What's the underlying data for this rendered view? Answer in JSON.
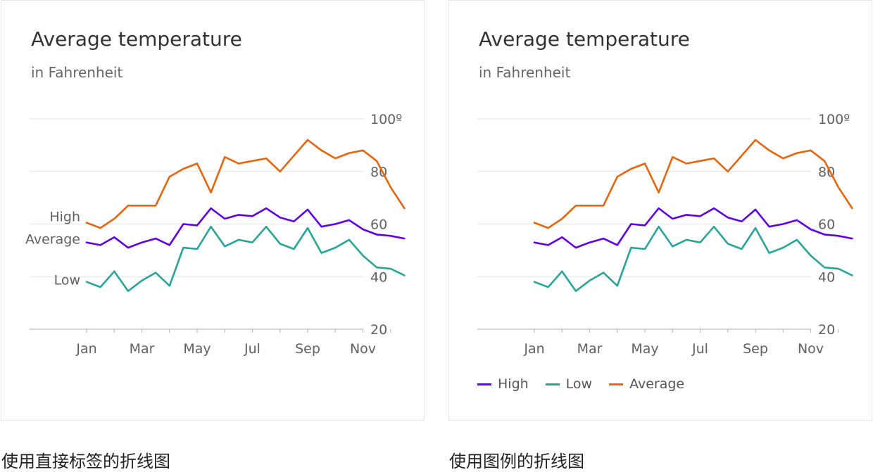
{
  "chart_data": [
    {
      "type": "line",
      "title": "Average temperature",
      "subtitle": "in Fahrenheit",
      "x_ticks": [
        "Jan",
        "Mar",
        "May",
        "Jul",
        "Sep",
        "Nov"
      ],
      "y_ticks": [
        "20",
        "40",
        "60",
        "80",
        "100º"
      ],
      "ylim": [
        20,
        100
      ],
      "grid": true,
      "label_mode": "direct labels at left",
      "series": [
        {
          "name": "High",
          "color": "#6200ea",
          "x": [
            1,
            1.5,
            2,
            2.5,
            3,
            3.5,
            4,
            4.5,
            5,
            5.5,
            6,
            6.5,
            7,
            7.5,
            8,
            8.5,
            9,
            9.5,
            10,
            10.5,
            11,
            11.5,
            12,
            12.5
          ],
          "values": [
            53,
            52,
            55,
            51,
            53,
            54.5,
            52,
            60,
            59.5,
            66,
            62,
            63.5,
            63,
            66,
            62.5,
            61,
            65.5,
            59,
            60,
            61.5,
            58,
            56,
            55.5,
            54.5
          ]
        },
        {
          "name": "Low",
          "color": "#26a69a",
          "x": [
            1,
            1.5,
            2,
            2.5,
            3,
            3.5,
            4,
            4.5,
            5,
            5.5,
            6,
            6.5,
            7,
            7.5,
            8,
            8.5,
            9,
            9.5,
            10,
            10.5,
            11,
            11.5,
            12,
            12.5
          ],
          "values": [
            38,
            36,
            42,
            34.5,
            38.5,
            41.5,
            36.5,
            51,
            50.5,
            59,
            51.5,
            54,
            53,
            59,
            52.5,
            50.5,
            58.5,
            49,
            51,
            54,
            48,
            43.5,
            43,
            40.5
          ]
        },
        {
          "name": "Average",
          "color": "#e8650c",
          "x": [
            1,
            1.5,
            2,
            2.5,
            3,
            3.5,
            4,
            4.5,
            5,
            5.5,
            6,
            6.5,
            7,
            7.5,
            8,
            8.5,
            9,
            9.5,
            10,
            10.5,
            11,
            11.5,
            12,
            12.5
          ],
          "values": [
            60.5,
            58.5,
            62,
            67,
            67,
            67,
            78,
            81,
            83,
            72,
            85.5,
            83,
            84,
            85,
            80,
            86,
            92,
            88,
            85,
            87,
            88,
            84,
            74,
            66
          ]
        }
      ]
    },
    {
      "type": "line",
      "title": "Average temperature",
      "subtitle": "in Fahrenheit",
      "x_ticks": [
        "Jan",
        "Mar",
        "May",
        "Jul",
        "Sep",
        "Nov"
      ],
      "y_ticks": [
        "20",
        "40",
        "60",
        "80",
        "100º"
      ],
      "ylim": [
        20,
        100
      ],
      "grid": true,
      "label_mode": "legend bottom-left",
      "series": [
        {
          "name": "High",
          "color": "#6200ea",
          "x": [
            1,
            1.5,
            2,
            2.5,
            3,
            3.5,
            4,
            4.5,
            5,
            5.5,
            6,
            6.5,
            7,
            7.5,
            8,
            8.5,
            9,
            9.5,
            10,
            10.5,
            11,
            11.5,
            12,
            12.5
          ],
          "values": [
            53,
            52,
            55,
            51,
            53,
            54.5,
            52,
            60,
            59.5,
            66,
            62,
            63.5,
            63,
            66,
            62.5,
            61,
            65.5,
            59,
            60,
            61.5,
            58,
            56,
            55.5,
            54.5
          ]
        },
        {
          "name": "Low",
          "color": "#26a69a",
          "x": [
            1,
            1.5,
            2,
            2.5,
            3,
            3.5,
            4,
            4.5,
            5,
            5.5,
            6,
            6.5,
            7,
            7.5,
            8,
            8.5,
            9,
            9.5,
            10,
            10.5,
            11,
            11.5,
            12,
            12.5
          ],
          "values": [
            38,
            36,
            42,
            34.5,
            38.5,
            41.5,
            36.5,
            51,
            50.5,
            59,
            51.5,
            54,
            53,
            59,
            52.5,
            50.5,
            58.5,
            49,
            51,
            54,
            48,
            43.5,
            43,
            40.5
          ]
        },
        {
          "name": "Average",
          "color": "#e8650c",
          "x": [
            1,
            1.5,
            2,
            2.5,
            3,
            3.5,
            4,
            4.5,
            5,
            5.5,
            6,
            6.5,
            7,
            7.5,
            8,
            8.5,
            9,
            9.5,
            10,
            10.5,
            11,
            11.5,
            12,
            12.5
          ],
          "values": [
            60.5,
            58.5,
            62,
            67,
            67,
            67,
            78,
            81,
            83,
            72,
            85.5,
            83,
            84,
            85,
            80,
            86,
            92,
            88,
            85,
            87,
            88,
            84,
            74,
            66
          ]
        }
      ]
    }
  ],
  "captions": {
    "left": "使用直接标签的折线图",
    "right": "使用图例的折线图"
  }
}
